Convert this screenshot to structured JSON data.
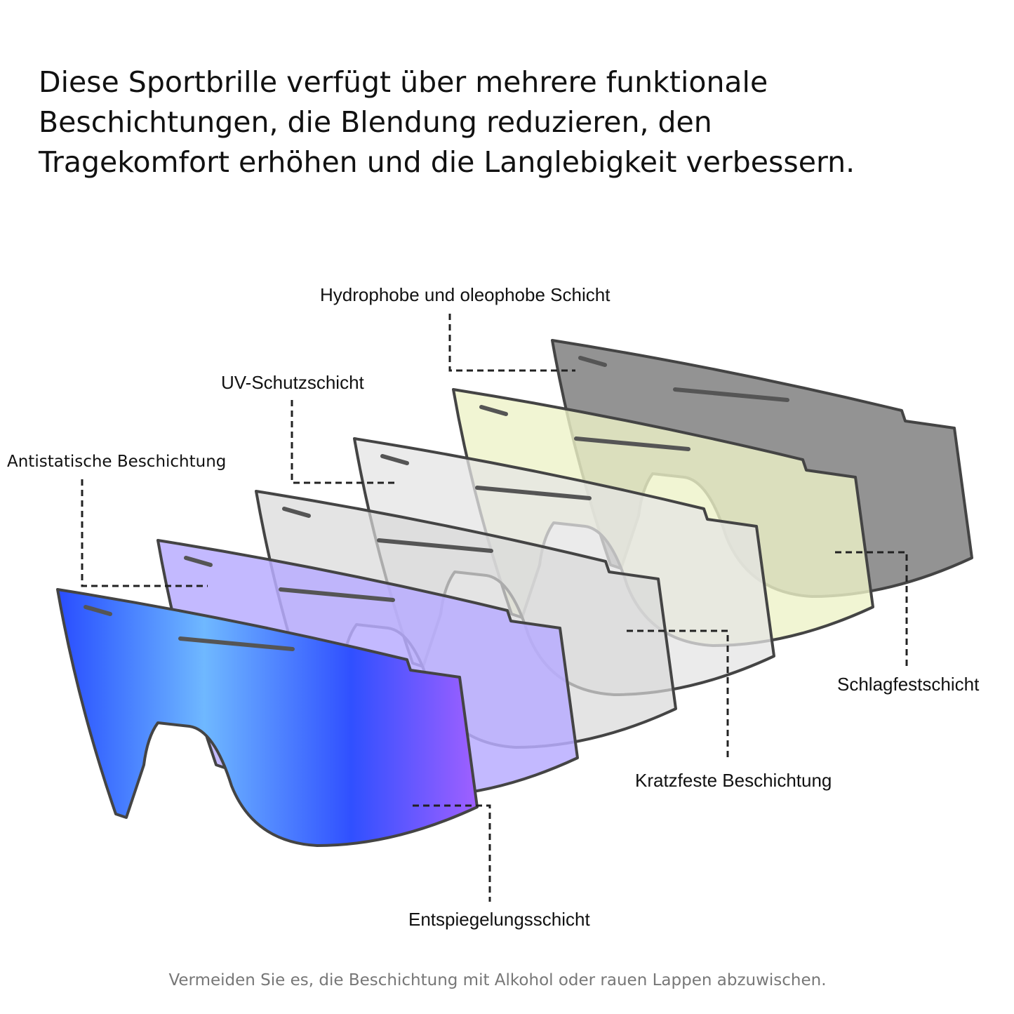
{
  "heading": {
    "lines": [
      "Diese Sportbrille verfügt über mehrere funktionale",
      "Beschichtungen, die Blendung reduzieren, den",
      "Tragekomfort erhöhen und die Langlebigkeit verbessern."
    ]
  },
  "labels": {
    "hydrophobic": "Hydrophobe und oleophobe Schicht",
    "uv": "UV-Schutzschicht",
    "antistatic": "Antistatische Beschichtung",
    "impact": "Schlagfestschicht",
    "scratch": "Kratzfeste Beschichtung",
    "antireflective": "Entspiegelungsschicht"
  },
  "footer": "Vermeiden Sie es, die Beschichtung mit Alkohol oder rauen Lappen abzuwischen."
}
